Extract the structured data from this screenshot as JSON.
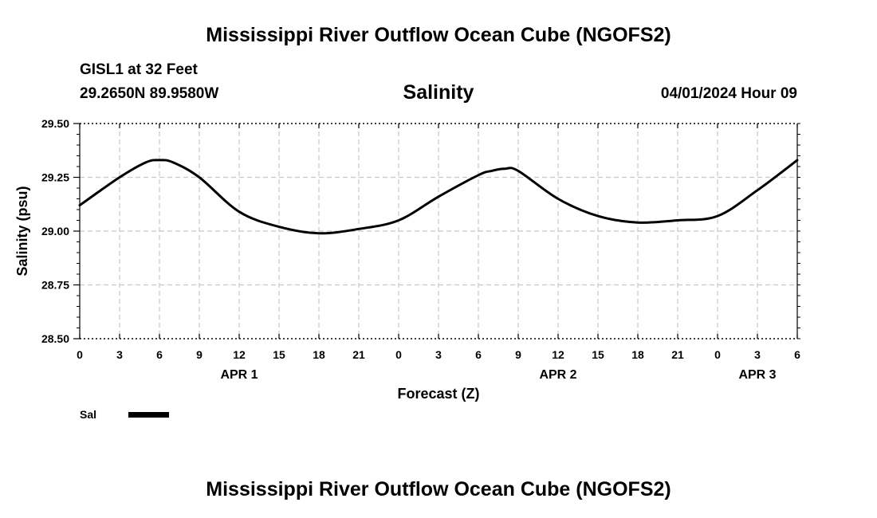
{
  "page": {
    "title": "Mississippi River Outflow Ocean Cube (NGOFS2)",
    "footer_title": "Mississippi River Outflow Ocean Cube (NGOFS2)",
    "station": "GISL1 at 32 Feet",
    "coords": "29.2650N  89.9580W",
    "datetime": "04/01/2024 Hour 09"
  },
  "chart_data": {
    "type": "line",
    "title": "Salinity",
    "xlabel": "Forecast (Z)",
    "ylabel": "Salinity (psu)",
    "ylim": [
      28.5,
      29.5
    ],
    "yticks": [
      "29.50",
      "29.25",
      "29.00",
      "28.75",
      "28.50"
    ],
    "xlim": [
      0,
      54
    ],
    "xtick_labels": [
      "0",
      "3",
      "6",
      "9",
      "12",
      "15",
      "18",
      "21",
      "0",
      "3",
      "6",
      "9",
      "12",
      "15",
      "18",
      "21",
      "0",
      "3",
      "6"
    ],
    "date_labels": [
      {
        "label": "APR 1",
        "x": 12
      },
      {
        "label": "APR 2",
        "x": 36
      },
      {
        "label": "APR 3",
        "x": 51
      }
    ],
    "grid": true,
    "line_color": "#000000",
    "series": [
      {
        "name": "Sal",
        "x": [
          0,
          3,
          5,
          6,
          7,
          9,
          12,
          15,
          18,
          21,
          24,
          27,
          30,
          31,
          32,
          33,
          36,
          39,
          42,
          45,
          48,
          51,
          54
        ],
        "values": [
          29.12,
          29.25,
          29.32,
          29.33,
          29.32,
          29.25,
          29.09,
          29.02,
          28.99,
          29.01,
          29.05,
          29.16,
          29.26,
          29.28,
          29.29,
          29.28,
          29.15,
          29.07,
          29.04,
          29.05,
          29.07,
          29.19,
          29.33
        ]
      }
    ]
  }
}
